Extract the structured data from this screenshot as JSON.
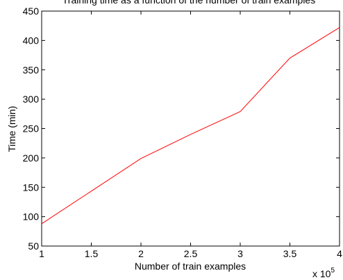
{
  "chart_data": {
    "type": "line",
    "title": "Training time as a function of the number of train examples",
    "xlabel": "Number of train examples",
    "ylabel": "Time (min)",
    "x_multiplier": {
      "base": "x 10",
      "exponent": "5"
    },
    "x_tick_labels": [
      "1",
      "1.5",
      "2",
      "2.5",
      "3",
      "3.5",
      "4"
    ],
    "y_tick_labels": [
      "50",
      "100",
      "150",
      "200",
      "250",
      "300",
      "350",
      "400",
      "450"
    ],
    "xlim": [
      1,
      4
    ],
    "ylim": [
      50,
      450
    ],
    "x_ticks": [
      1,
      1.5,
      2,
      2.5,
      3,
      3.5,
      4
    ],
    "y_ticks": [
      50,
      100,
      150,
      200,
      250,
      300,
      350,
      400,
      450
    ],
    "grid": false,
    "series": [
      {
        "color": "#ff0000",
        "x": [
          1,
          2,
          2.5,
          3,
          3.5,
          4
        ],
        "y": [
          88,
          199,
          240,
          279,
          370,
          422
        ]
      }
    ]
  }
}
